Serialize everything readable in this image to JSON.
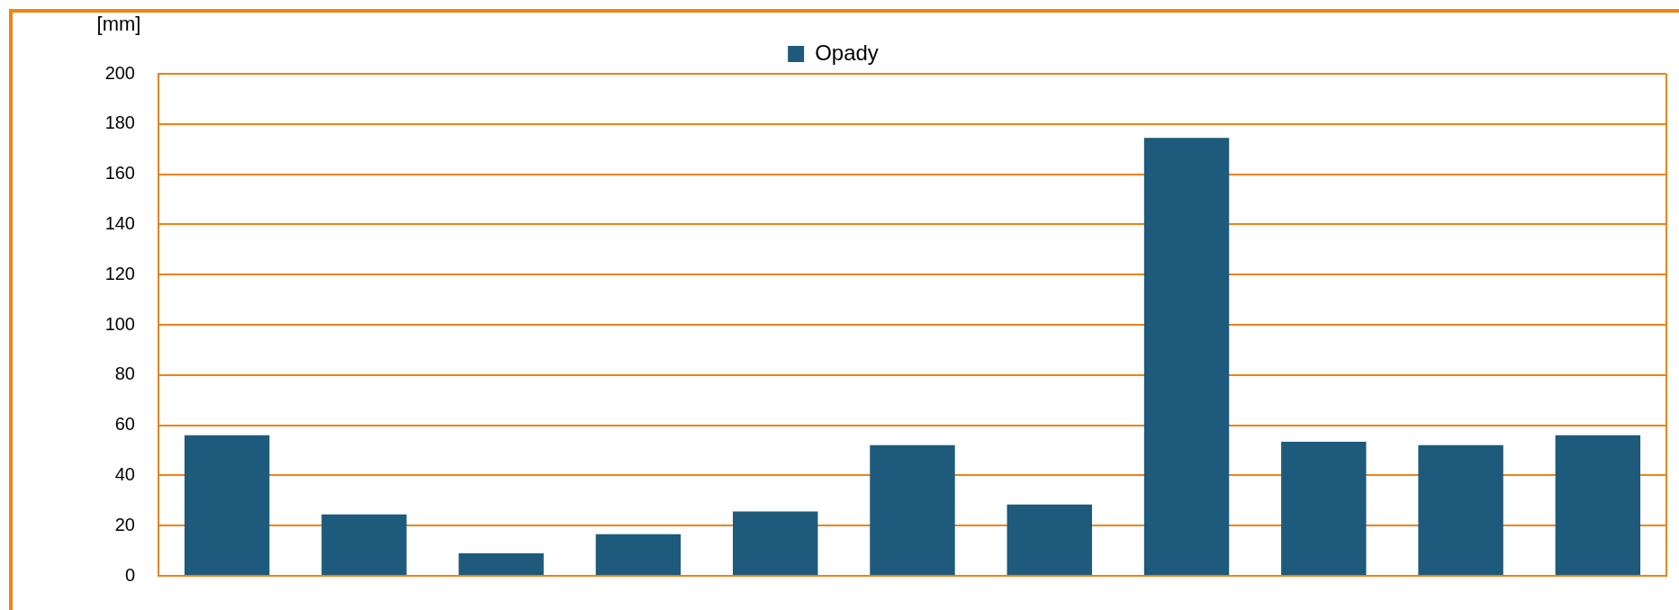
{
  "chart_data": {
    "type": "bar",
    "ylabel": "[mm]",
    "categories": [
      null,
      null,
      null,
      null,
      null,
      null,
      null,
      null,
      null,
      null,
      null
    ],
    "series": [
      {
        "name": "Opady",
        "color": "#1d5a7c",
        "values": [
          56,
          24.5,
          9,
          16.6,
          25.6,
          52.1,
          28.4,
          174.5,
          53.4,
          52.1,
          56
        ]
      }
    ],
    "ylim": [
      0,
      200
    ],
    "yticks": [
      0,
      20,
      40,
      60,
      80,
      100,
      120,
      140,
      160,
      180,
      200
    ],
    "grid": "y",
    "legend": "top",
    "tick_labels": "y"
  }
}
